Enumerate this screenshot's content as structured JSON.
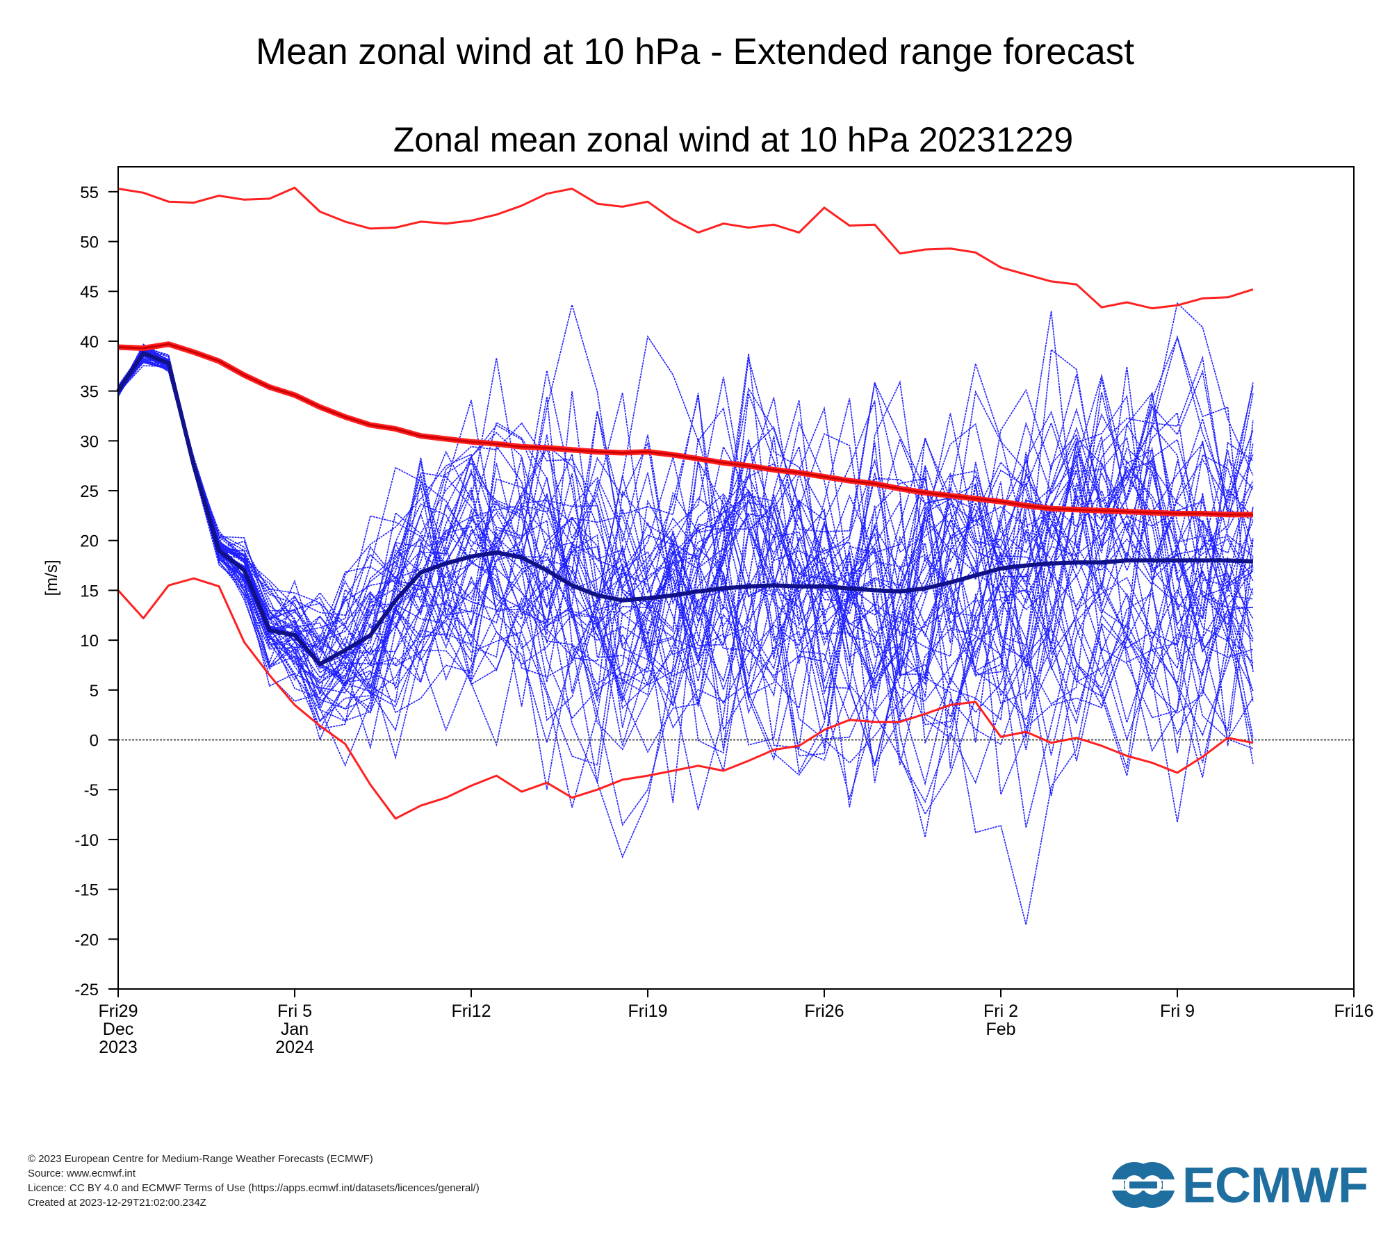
{
  "page": {
    "title": "Mean zonal wind at 10 hPa - Extended range forecast"
  },
  "colors": {
    "ensemble_member": "#1f1fff",
    "ensemble_mean": "#111188",
    "climate_extremes": "#ff2020",
    "climate_mean": "#cc0000",
    "zero_line": "#555555",
    "logo": "#1f6ea0"
  },
  "chart_data": {
    "type": "line",
    "title": "Zonal mean zonal wind at 10 hPa 20231229",
    "ylabel": "[m/s]",
    "xlabel": "",
    "ylim": [
      -25,
      57.5
    ],
    "yticks": [
      55,
      50,
      45,
      40,
      35,
      30,
      25,
      20,
      15,
      10,
      5,
      0,
      -5,
      -10,
      -15,
      -20,
      -25
    ],
    "xlim": [
      "2023-12-29",
      "2024-02-16"
    ],
    "x_ticks": [
      {
        "date": "2023-12-29",
        "label": "Fri29",
        "label2": "Dec",
        "label3": "2023"
      },
      {
        "date": "2024-01-05",
        "label": "Fri 5",
        "label2": "Jan",
        "label3": "2024"
      },
      {
        "date": "2024-01-12",
        "label": "Fri12",
        "label2": "",
        "label3": ""
      },
      {
        "date": "2024-01-19",
        "label": "Fri19",
        "label2": "",
        "label3": ""
      },
      {
        "date": "2024-01-26",
        "label": "Fri26",
        "label2": "",
        "label3": ""
      },
      {
        "date": "2024-02-02",
        "label": "Fri 2",
        "label2": "Feb",
        "label3": ""
      },
      {
        "date": "2024-02-09",
        "label": "Fri 9",
        "label2": "",
        "label3": ""
      },
      {
        "date": "2024-02-16",
        "label": "Fri16",
        "label2": "",
        "label3": ""
      }
    ],
    "dates": [
      "2023-12-29",
      "2023-12-30",
      "2023-12-31",
      "2024-01-01",
      "2024-01-02",
      "2024-01-03",
      "2024-01-04",
      "2024-01-05",
      "2024-01-06",
      "2024-01-07",
      "2024-01-08",
      "2024-01-09",
      "2024-01-10",
      "2024-01-11",
      "2024-01-12",
      "2024-01-13",
      "2024-01-14",
      "2024-01-15",
      "2024-01-16",
      "2024-01-17",
      "2024-01-18",
      "2024-01-19",
      "2024-01-20",
      "2024-01-21",
      "2024-01-22",
      "2024-01-23",
      "2024-01-24",
      "2024-01-25",
      "2024-01-26",
      "2024-01-27",
      "2024-01-28",
      "2024-01-29",
      "2024-01-30",
      "2024-01-31",
      "2024-02-01",
      "2024-02-02",
      "2024-02-03",
      "2024-02-04",
      "2024-02-05",
      "2024-02-06",
      "2024-02-07",
      "2024-02-08",
      "2024-02-09",
      "2024-02-10",
      "2024-02-11",
      "2024-02-12"
    ],
    "zero_line": 0,
    "series": [
      {
        "role": "climate-max",
        "values": [
          55.3,
          54.9,
          54.0,
          53.9,
          54.6,
          54.2,
          54.3,
          55.4,
          53.0,
          52.0,
          51.3,
          51.4,
          52.0,
          51.8,
          52.1,
          52.7,
          53.6,
          54.8,
          55.3,
          53.8,
          53.5,
          54.0,
          52.2,
          50.9,
          51.8,
          51.4,
          51.7,
          50.9,
          53.4,
          51.6,
          51.7,
          48.8,
          49.2,
          49.3,
          48.9,
          47.4,
          46.7,
          46.0,
          45.7,
          43.4,
          43.9,
          43.3,
          43.6,
          44.3,
          44.4,
          45.2
        ]
      },
      {
        "role": "climate-min",
        "values": [
          15.0,
          12.2,
          15.5,
          16.2,
          15.4,
          9.8,
          6.5,
          3.5,
          1.4,
          -0.4,
          -4.5,
          -7.9,
          -6.6,
          -5.8,
          -4.6,
          -3.6,
          -5.2,
          -4.3,
          -5.8,
          -5.0,
          -4.0,
          -3.6,
          -3.1,
          -2.6,
          -3.1,
          -2.1,
          -1.0,
          -0.6,
          1.0,
          2.0,
          1.8,
          1.8,
          2.6,
          3.5,
          3.8,
          0.3,
          0.8,
          -0.3,
          0.2,
          -0.6,
          -1.6,
          -2.3,
          -3.3,
          -1.7,
          0.2,
          -0.3
        ]
      },
      {
        "role": "climate-mean",
        "values": [
          39.4,
          39.3,
          39.7,
          38.9,
          38.0,
          36.6,
          35.4,
          34.6,
          33.4,
          32.4,
          31.6,
          31.2,
          30.5,
          30.2,
          29.9,
          29.7,
          29.4,
          29.3,
          29.1,
          28.9,
          28.8,
          28.9,
          28.6,
          28.2,
          27.8,
          27.5,
          27.1,
          26.8,
          26.4,
          26.0,
          25.7,
          25.2,
          24.8,
          24.5,
          24.2,
          23.9,
          23.5,
          23.2,
          23.1,
          23.0,
          22.9,
          22.8,
          22.7,
          22.7,
          22.6,
          22.6
        ]
      },
      {
        "role": "ensemble-mean",
        "values": [
          35.0,
          38.8,
          37.8,
          27.5,
          19.0,
          17.0,
          11.0,
          10.5,
          7.6,
          9.0,
          10.5,
          14.0,
          16.8,
          17.7,
          18.4,
          18.8,
          18.3,
          17.0,
          15.5,
          14.5,
          14.0,
          14.2,
          14.5,
          14.9,
          15.2,
          15.4,
          15.5,
          15.4,
          15.4,
          15.2,
          15.0,
          14.9,
          15.2,
          15.8,
          16.5,
          17.2,
          17.5,
          17.7,
          17.8,
          17.8,
          18.0,
          18.0,
          18.0,
          18.0,
          18.0,
          17.9
        ]
      }
    ],
    "ensemble_members": 51,
    "legend": "none",
    "grid": false
  },
  "footer": {
    "copyright": "© 2023 European Centre for Medium-Range Weather Forecasts (ECMWF)",
    "source": "Source: www.ecmwf.int",
    "licence": "Licence: CC BY 4.0 and ECMWF Terms of Use (https://apps.ecmwf.int/datasets/licences/general/)",
    "created": "Created at 2023-12-29T21:02:00.234Z"
  },
  "logo": {
    "text": "ECMWF",
    "icon": "ecmwf-logo-icon"
  }
}
